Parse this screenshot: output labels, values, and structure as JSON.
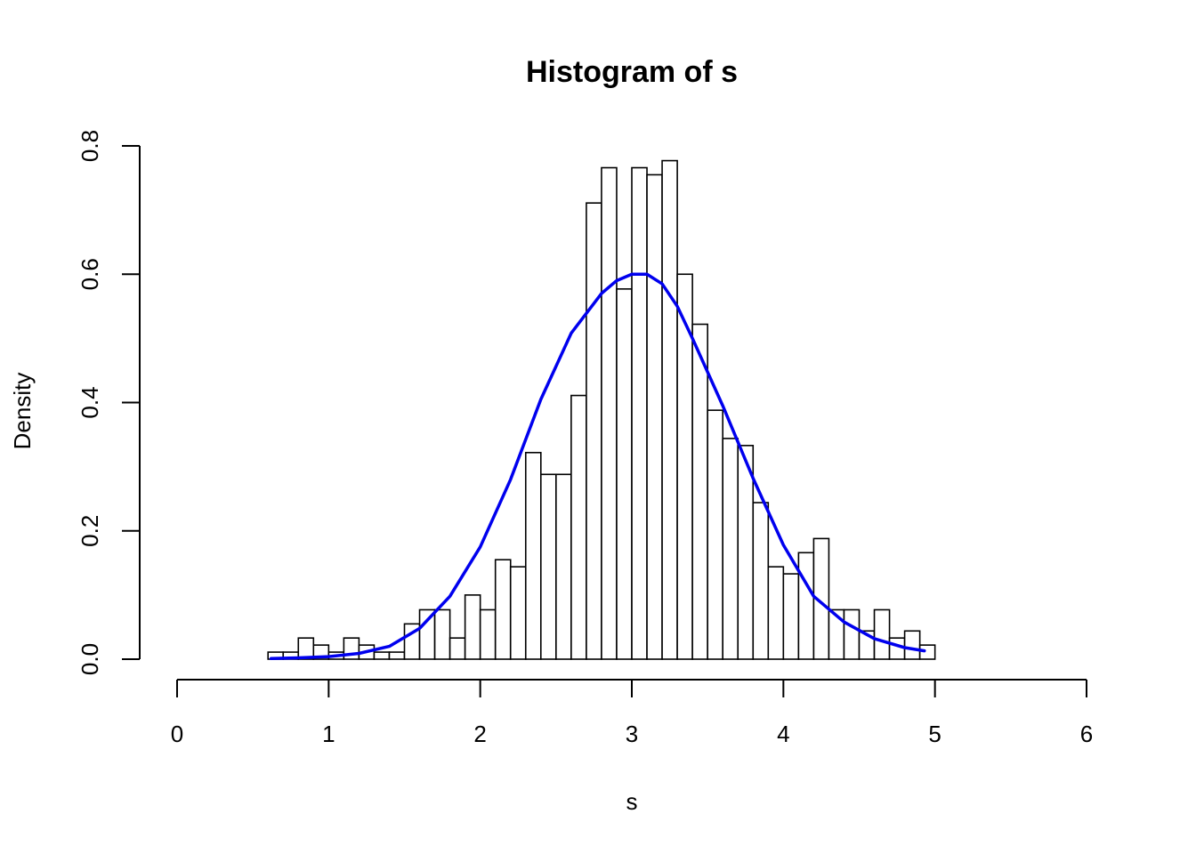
{
  "chart_data": {
    "type": "bar",
    "title": "Histogram of s",
    "xlabel": "s",
    "ylabel": "Density",
    "xlim": [
      0,
      6
    ],
    "ylim": [
      0,
      0.8
    ],
    "x_ticks": [
      "0",
      "1",
      "2",
      "3",
      "4",
      "5",
      "6"
    ],
    "y_ticks": [
      "0.0",
      "0.2",
      "0.4",
      "0.6",
      "0.8"
    ],
    "grid": false,
    "bin_width": 0.1,
    "bin_start": 0.6,
    "bars": [
      0.011,
      0.011,
      0.033,
      0.022,
      0.011,
      0.033,
      0.022,
      0.011,
      0.011,
      0.055,
      0.077,
      0.077,
      0.033,
      0.1,
      0.077,
      0.155,
      0.144,
      0.322,
      0.288,
      0.288,
      0.411,
      0.711,
      0.766,
      0.577,
      0.766,
      0.755,
      0.777,
      0.6,
      0.522,
      0.388,
      0.344,
      0.333,
      0.244,
      0.144,
      0.133,
      0.166,
      0.188,
      0.077,
      0.077,
      0.044,
      0.077,
      0.033,
      0.044,
      0.022
    ],
    "curve": {
      "color": "#0000ee",
      "x": [
        0.62,
        0.8,
        1.0,
        1.2,
        1.4,
        1.6,
        1.8,
        2.0,
        2.2,
        2.4,
        2.6,
        2.8,
        2.9,
        3.0,
        3.1,
        3.2,
        3.3,
        3.4,
        3.6,
        3.8,
        4.0,
        4.2,
        4.4,
        4.6,
        4.8,
        4.93
      ],
      "y": [
        0.001,
        0.002,
        0.004,
        0.009,
        0.02,
        0.048,
        0.098,
        0.175,
        0.28,
        0.405,
        0.508,
        0.57,
        0.59,
        0.6,
        0.6,
        0.585,
        0.55,
        0.5,
        0.395,
        0.282,
        0.178,
        0.098,
        0.058,
        0.032,
        0.018,
        0.013
      ]
    }
  }
}
